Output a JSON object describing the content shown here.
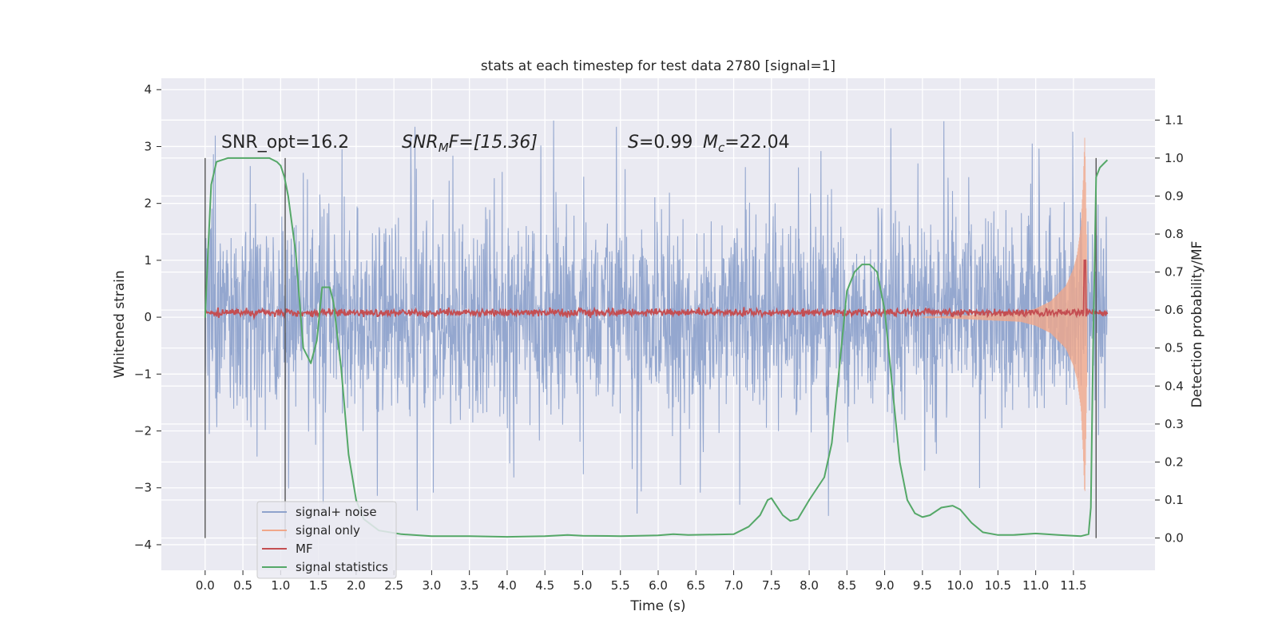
{
  "chart_data": {
    "type": "line",
    "title": "stats at each timestep for test data 2780 [signal=1]",
    "xlabel": "Time (s)",
    "ylabel": "Whitened strain",
    "y2label": "Detection probability/MF",
    "xlim": [
      -0.58,
      12.58
    ],
    "ylim": [
      -4.45,
      4.2
    ],
    "y2lim": [
      -0.085,
      1.21
    ],
    "x_ticks": [
      "0.0",
      "0.5",
      "1.0",
      "1.5",
      "2.0",
      "2.5",
      "3.0",
      "3.5",
      "4.0",
      "4.5",
      "5.0",
      "5.5",
      "6.0",
      "6.5",
      "7.0",
      "7.5",
      "8.0",
      "8.5",
      "9.0",
      "9.5",
      "10.0",
      "10.5",
      "11.0",
      "11.5"
    ],
    "y_ticks": [
      "−4",
      "−3",
      "−2",
      "−1",
      "0",
      "1",
      "2",
      "3",
      "4"
    ],
    "y2_ticks": [
      "0.0",
      "0.1",
      "0.2",
      "0.3",
      "0.4",
      "0.5",
      "0.6",
      "0.7",
      "0.8",
      "0.9",
      "1.0",
      "1.1"
    ],
    "grid": true,
    "legend_position": "lower-left",
    "annotations": {
      "snr_opt": "SNR_opt=16.2",
      "snr_mf": "SNR",
      "snr_mf_sub": "M",
      "snr_mf_rest": "F=[15.36]",
      "s_label": "S",
      "s_value": "=0.99",
      "mc_label": "M",
      "mc_sub": "c",
      "mc_value": "=22.04"
    },
    "vertical_lines_x": [
      0.0,
      1.06,
      11.8
    ],
    "noise_envelope": {
      "x_range": [
        0.0,
        11.95
      ],
      "typical_abs": 1.2,
      "peak_max": 3.8,
      "peak_min": -4.1
    },
    "series": [
      {
        "name": "signal+ noise",
        "color": "#8fa3cc",
        "note_x": [
          0.0,
          11.95
        ]
      },
      {
        "name": "signal only",
        "color": "#f0a78a",
        "x": [
          10.8,
          11.0,
          11.2,
          11.4,
          11.5,
          11.55,
          11.6,
          11.63,
          11.65,
          11.68
        ],
        "envelope": [
          0.08,
          0.15,
          0.28,
          0.55,
          0.85,
          1.1,
          1.6,
          2.4,
          3.2,
          1.0
        ]
      },
      {
        "name": "MF",
        "color": "#c44e52",
        "x": [
          0.0,
          11.95
        ],
        "y_level": 0.08,
        "y_jitter": 0.08,
        "spike_x": 11.65,
        "spike_y": 1.0
      },
      {
        "name": "signal statistics",
        "color": "#55a868",
        "axis": "right",
        "x": [
          0.0,
          0.03,
          0.08,
          0.15,
          0.3,
          0.5,
          0.7,
          0.85,
          0.95,
          1.0,
          1.05,
          1.1,
          1.2,
          1.3,
          1.4,
          1.48,
          1.55,
          1.6,
          1.65,
          1.7,
          1.8,
          1.9,
          2.0,
          2.1,
          2.3,
          2.6,
          3.0,
          3.5,
          4.0,
          4.5,
          4.8,
          5.0,
          5.5,
          6.0,
          6.2,
          6.4,
          7.0,
          7.2,
          7.35,
          7.45,
          7.5,
          7.55,
          7.65,
          7.75,
          7.85,
          8.0,
          8.2,
          8.3,
          8.4,
          8.5,
          8.6,
          8.7,
          8.8,
          8.9,
          9.0,
          9.1,
          9.2,
          9.3,
          9.4,
          9.5,
          9.6,
          9.75,
          9.9,
          10.0,
          10.15,
          10.3,
          10.5,
          10.7,
          11.0,
          11.3,
          11.6,
          11.7,
          11.73,
          11.76,
          11.8,
          11.85,
          11.9,
          11.95
        ],
        "y": [
          0.58,
          0.72,
          0.93,
          0.99,
          1.0,
          1.0,
          1.0,
          1.0,
          0.99,
          0.98,
          0.95,
          0.9,
          0.75,
          0.5,
          0.46,
          0.52,
          0.66,
          0.66,
          0.66,
          0.62,
          0.45,
          0.22,
          0.1,
          0.05,
          0.02,
          0.01,
          0.005,
          0.005,
          0.003,
          0.005,
          0.008,
          0.006,
          0.005,
          0.007,
          0.01,
          0.008,
          0.01,
          0.03,
          0.06,
          0.1,
          0.105,
          0.09,
          0.06,
          0.045,
          0.05,
          0.1,
          0.16,
          0.25,
          0.45,
          0.65,
          0.7,
          0.72,
          0.72,
          0.7,
          0.6,
          0.4,
          0.2,
          0.1,
          0.065,
          0.055,
          0.06,
          0.08,
          0.085,
          0.075,
          0.04,
          0.015,
          0.008,
          0.008,
          0.012,
          0.008,
          0.005,
          0.01,
          0.08,
          0.5,
          0.95,
          0.975,
          0.985,
          0.995
        ]
      }
    ]
  }
}
